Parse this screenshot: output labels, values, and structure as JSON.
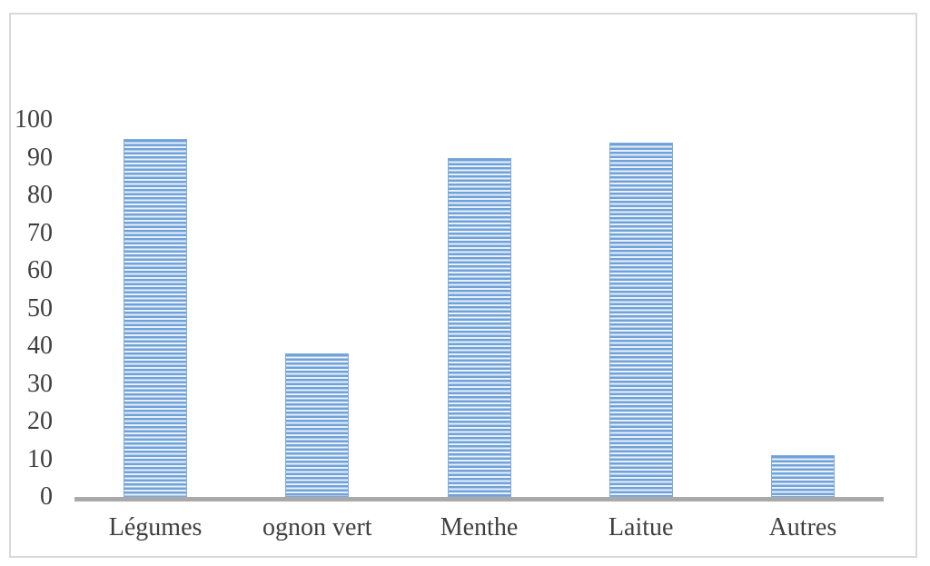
{
  "chart_data": {
    "type": "bar",
    "title": "",
    "xlabel": "",
    "ylabel": "",
    "categories": [
      "Légumes",
      "ognon vert",
      "Menthe",
      "Laitue",
      "Autres"
    ],
    "values": [
      95,
      38,
      90,
      94,
      11
    ],
    "ylim": [
      0,
      100
    ],
    "yticks": [
      0,
      10,
      20,
      30,
      40,
      50,
      60,
      70,
      80,
      90,
      100
    ],
    "grid": false,
    "legend": "none",
    "bar_fill_pattern": "horizontal-stripes",
    "style": {
      "stripe_color": "#6fa2d8",
      "stripe_bg": "#e9f0fa",
      "bar_border_color": "#7fabdc",
      "axis_line_color": "#a9a9a9",
      "text_color": "#3f3f3f",
      "frame_border_color": "#d9d9d9"
    }
  }
}
